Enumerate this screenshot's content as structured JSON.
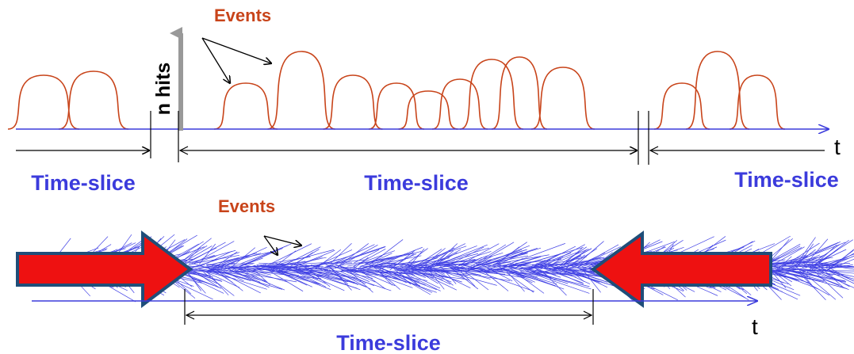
{
  "top": {
    "events_label": "Events",
    "y_axis_label": "n hits",
    "time_axis_label": "t",
    "time_slices": [
      "Time-slice",
      "Time-slice",
      "Time-slice"
    ]
  },
  "bottom": {
    "events_label": "Events",
    "time_axis_label": "t",
    "time_slice": "Time-slice"
  }
}
